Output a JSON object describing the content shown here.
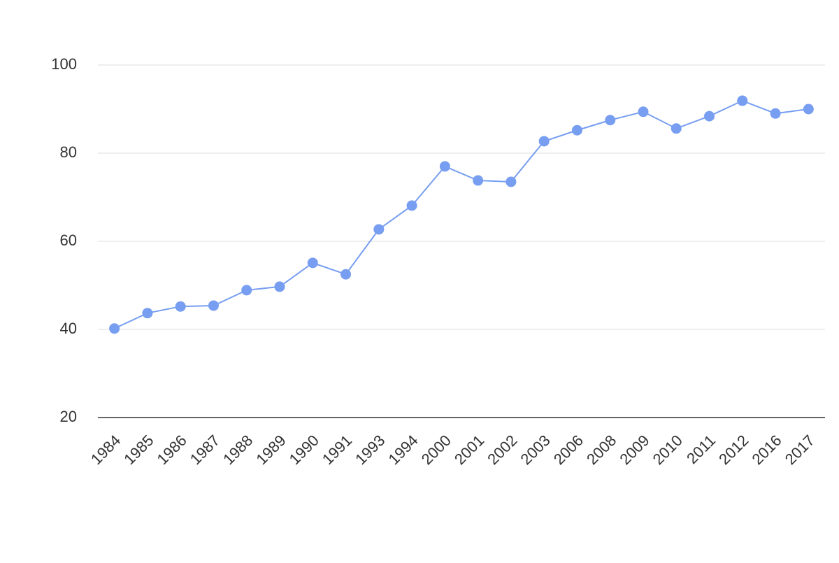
{
  "chart_data": {
    "type": "line",
    "categories": [
      "1984",
      "1985",
      "1986",
      "1987",
      "1988",
      "1989",
      "1990",
      "1991",
      "1993",
      "1994",
      "2000",
      "2001",
      "2002",
      "2003",
      "2006",
      "2008",
      "2009",
      "2010",
      "2011",
      "2012",
      "2016",
      "2017"
    ],
    "values": [
      40.2,
      43.7,
      45.2,
      45.4,
      48.9,
      49.7,
      55.1,
      52.5,
      62.7,
      68.1,
      77.0,
      73.8,
      73.5,
      82.7,
      85.2,
      87.5,
      89.4,
      85.6,
      88.4,
      91.9,
      89.0,
      90.0
    ],
    "color": "#779ef0",
    "ylim": [
      20,
      100
    ],
    "yticks": [
      20,
      40,
      60,
      80,
      100
    ],
    "grid": true
  }
}
